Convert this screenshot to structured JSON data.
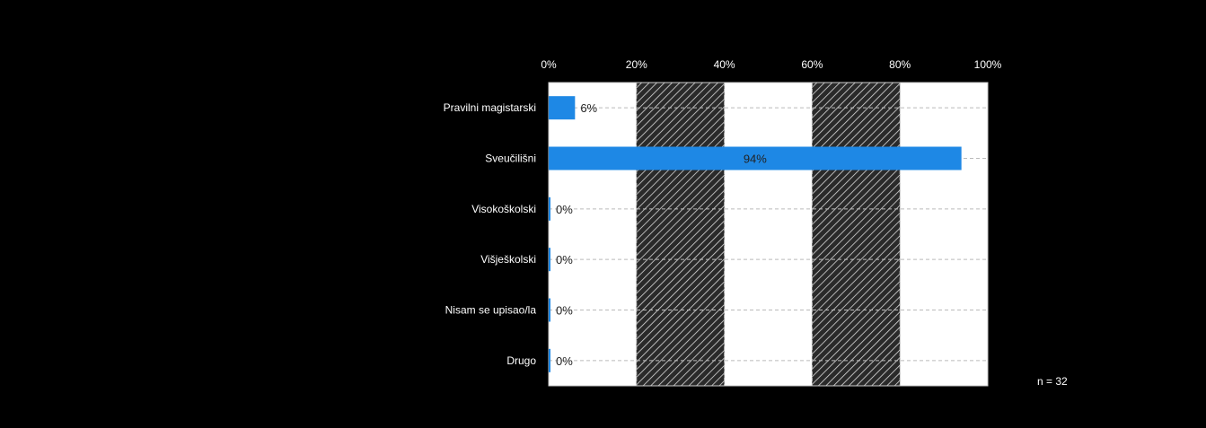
{
  "chart_data": {
    "type": "bar",
    "orientation": "horizontal",
    "categories": [
      "Pravilni magistarski",
      "Sveučilišni",
      "Visokoškolski",
      "Višješkolski",
      "Nisam se upisao/la",
      "Drugo"
    ],
    "values": [
      6,
      94,
      0,
      0,
      0,
      0
    ],
    "value_labels": [
      "6%",
      "94%",
      "0%",
      "0%",
      "0%",
      "0%"
    ],
    "x_ticks": [
      "0%",
      "20%",
      "40%",
      "60%",
      "80%",
      "100%"
    ],
    "xlim": [
      0,
      100
    ],
    "grid": true,
    "annotation": "n = 32",
    "colors": {
      "background": "#000000",
      "bar": "#1e88e5",
      "plot_band_light": "#ffffff",
      "plot_band_dark": "#2a2a2a",
      "text": "#ffffff",
      "label_on_bar": "#222222"
    }
  }
}
